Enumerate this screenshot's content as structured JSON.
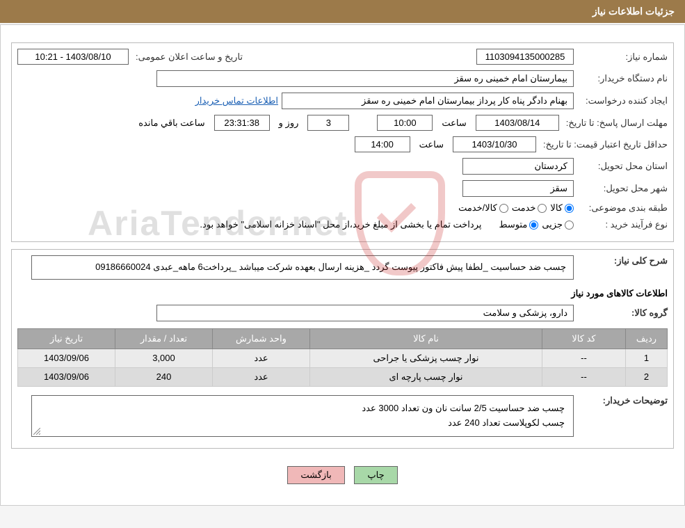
{
  "header": {
    "title": "جزئیات اطلاعات نیاز"
  },
  "fields": {
    "need_number_label": "شماره نیاز:",
    "need_number": "1103094135000285",
    "announce_label": "تاریخ و ساعت اعلان عمومی:",
    "announce_value": "1403/08/10 - 10:21",
    "buyer_org_label": "نام دستگاه خریدار:",
    "buyer_org": "بیمارستان امام خمینی  ره  سقز",
    "requester_label": "ایجاد کننده درخواست:",
    "requester": "بهنام دادگر پناه کار پرداز بیمارستان امام خمینی  ره  سقز",
    "contact_link": "اطلاعات تماس خریدار",
    "deadline_label": "مهلت ارسال پاسخ:",
    "to_date_label": "تا تاریخ:",
    "deadline_date": "1403/08/14",
    "time_label": "ساعت",
    "deadline_time": "10:00",
    "days_value": "3",
    "days_and": "روز و",
    "countdown": "23:31:38",
    "remaining_label": "ساعت باقي مانده",
    "price_validity_label": "حداقل تاریخ اعتبار قیمت:",
    "price_date": "1403/10/30",
    "price_time": "14:00",
    "province_label": "استان محل تحویل:",
    "province": "کردستان",
    "city_label": "شهر محل تحویل:",
    "city": "سقز",
    "category_label": "طبقه بندی موضوعی:",
    "cat_goods": "کالا",
    "cat_service": "خدمت",
    "cat_both": "کالا/خدمت",
    "purchase_type_label": "نوع فرآیند خرید :",
    "pt_small": "جزیی",
    "pt_medium": "متوسط",
    "payment_note": "پرداخت تمام یا بخشی از مبلغ خرید،از محل \"اسناد خزانه اسلامی\" خواهد بود.",
    "need_desc_label": "شرح کلی نیاز:",
    "need_desc": "چسب ضد حساسیت _لطفا پیش فاکتور پیوست گردد _هزینه ارسال بعهده شرکت میباشد _پرداخت6 ماهه_عبدی 09186660024",
    "items_title": "اطلاعات کالاهای مورد نیاز",
    "group_label": "گروه کالا:",
    "group_value": "دارو، پزشکی و سلامت",
    "buyer_notes_label": "توضیحات خریدار:",
    "buyer_notes_line1": "چسب ضد حساسیت 2/5 سانت نان ون  تعداد 3000 عدد",
    "buyer_notes_line2": "چسب لکوپلاست  تعداد 240 عدد"
  },
  "table": {
    "headers": {
      "row": "ردیف",
      "code": "کد کالا",
      "name": "نام کالا",
      "unit": "واحد شمارش",
      "qty": "تعداد / مقدار",
      "date": "تاریخ نیاز"
    },
    "rows": [
      {
        "row": "1",
        "code": "--",
        "name": "نوار چسب پزشکی یا جراحی",
        "unit": "عدد",
        "qty": "3,000",
        "date": "1403/09/06"
      },
      {
        "row": "2",
        "code": "--",
        "name": "نوار چسب پارچه ای",
        "unit": "عدد",
        "qty": "240",
        "date": "1403/09/06"
      }
    ]
  },
  "buttons": {
    "print": "چاپ",
    "back": "بازگشت"
  },
  "watermark": "AriaTender.net",
  "colors": {
    "header_bg": "#9c7a4a",
    "table_header_bg": "#a8a8a8",
    "btn_print_bg": "#a8d8a8",
    "btn_back_bg": "#f0b8b8",
    "link_color": "#1a5fb4"
  }
}
